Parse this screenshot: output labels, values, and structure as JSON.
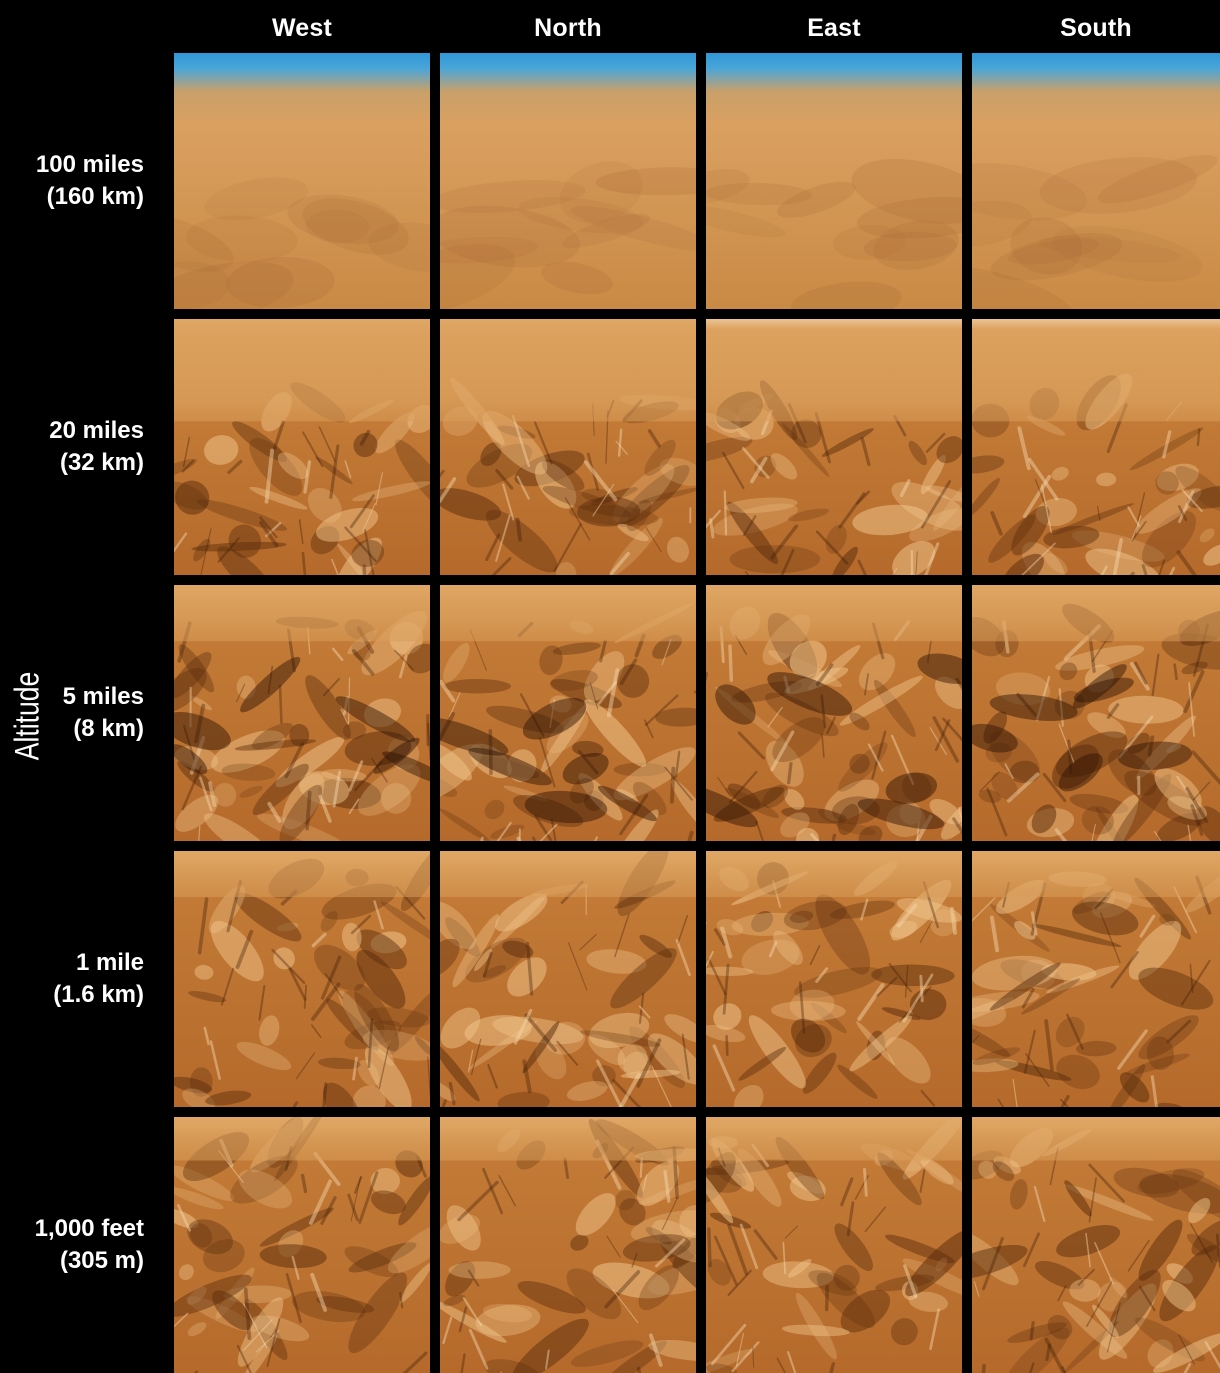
{
  "figure": {
    "axis_title": "Altitude",
    "columns": [
      "West",
      "North",
      "East",
      "South"
    ],
    "rows": [
      {
        "line1": "100 miles",
        "line2": "(160 km)",
        "scene": "haze"
      },
      {
        "line1": "20 miles",
        "line2": "(32 km)",
        "scene": "terrain-far"
      },
      {
        "line1": "5 miles",
        "line2": "(8 km)",
        "scene": "terrain-mid"
      },
      {
        "line1": "1 mile",
        "line2": "(1.6 km)",
        "scene": "terrain-near"
      },
      {
        "line1": "1,000 feet",
        "line2": "(305 m)",
        "scene": "terrain-ground"
      }
    ]
  },
  "colors": {
    "background": "#000000",
    "sky_blue": "#2f96d6",
    "haze_orange": "#d8964f",
    "terrain_orange": "#c27a36",
    "terrain_dark": "#5a2c0c",
    "terrain_light": "#f0c48a"
  }
}
